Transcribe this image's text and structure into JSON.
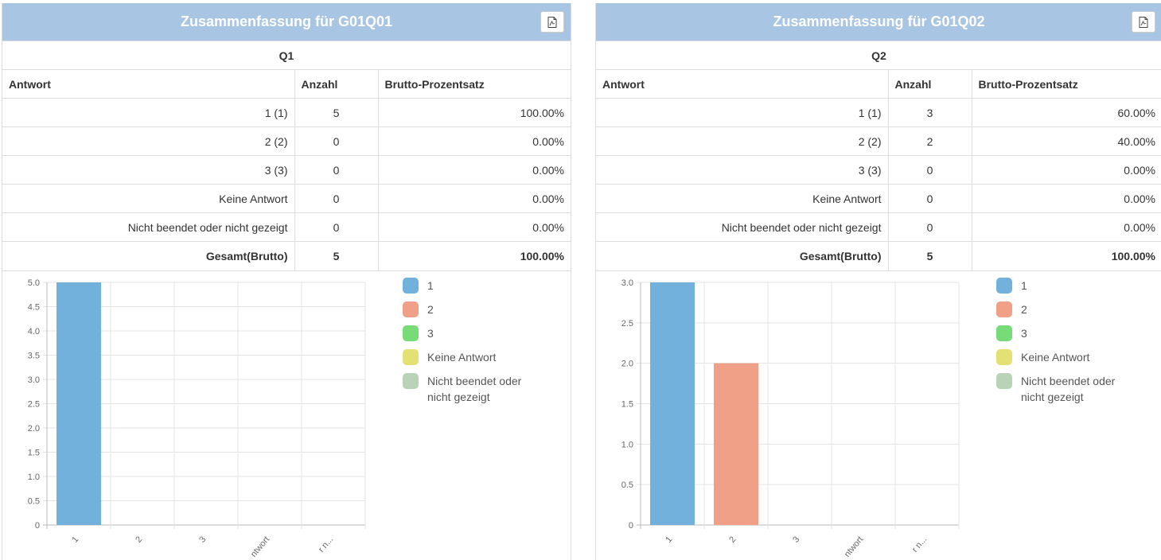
{
  "panels": [
    {
      "title": "Zusammenfassung für G01Q01",
      "question": "Q1",
      "headers": {
        "answer": "Antwort",
        "count": "Anzahl",
        "percent": "Brutto-Prozentsatz"
      },
      "rows": [
        {
          "answer": "1 (1)",
          "count": "5",
          "percent": "100.00%"
        },
        {
          "answer": "2 (2)",
          "count": "0",
          "percent": "0.00%"
        },
        {
          "answer": "3 (3)",
          "count": "0",
          "percent": "0.00%"
        },
        {
          "answer": "Keine Antwort",
          "count": "0",
          "percent": "0.00%"
        },
        {
          "answer": "Nicht beendet oder nicht gezeigt",
          "count": "0",
          "percent": "0.00%"
        }
      ],
      "total": {
        "answer": "Gesamt(Brutto)",
        "count": "5",
        "percent": "100.00%"
      },
      "legend": [
        "1",
        "2",
        "3",
        "Keine Antwort",
        "Nicht beendet oder nicht gezeigt"
      ]
    },
    {
      "title": "Zusammenfassung für G01Q02",
      "question": "Q2",
      "headers": {
        "answer": "Antwort",
        "count": "Anzahl",
        "percent": "Brutto-Prozentsatz"
      },
      "rows": [
        {
          "answer": "1 (1)",
          "count": "3",
          "percent": "60.00%"
        },
        {
          "answer": "2 (2)",
          "count": "2",
          "percent": "40.00%"
        },
        {
          "answer": "3 (3)",
          "count": "0",
          "percent": "0.00%"
        },
        {
          "answer": "Keine Antwort",
          "count": "0",
          "percent": "0.00%"
        },
        {
          "answer": "Nicht beendet oder nicht gezeigt",
          "count": "0",
          "percent": "0.00%"
        }
      ],
      "total": {
        "answer": "Gesamt(Brutto)",
        "count": "5",
        "percent": "100.00%"
      },
      "legend": [
        "1",
        "2",
        "3",
        "Keine Antwort",
        "Nicht beendet oder nicht gezeigt"
      ]
    }
  ],
  "colors": {
    "series": [
      "#72b1dc",
      "#f0a086",
      "#77db77",
      "#e3e173",
      "#b9d3b9"
    ],
    "header_bg": "#a8c5e4"
  },
  "chart_data": [
    {
      "type": "bar",
      "categories": [
        "1",
        "2",
        "3",
        "Keine Antwort",
        "Nicht beendet oder nicht gezeigt"
      ],
      "category_ticks": [
        "1",
        "2",
        "3",
        "ntwort",
        "r n..."
      ],
      "values": [
        5,
        0,
        0,
        0,
        0
      ],
      "ylim": [
        0,
        5
      ],
      "yticks": [
        "0",
        "0.5",
        "1.0",
        "1.5",
        "2.0",
        "2.5",
        "3.0",
        "3.5",
        "4.0",
        "4.5",
        "5.0"
      ],
      "legend": "right"
    },
    {
      "type": "bar",
      "categories": [
        "1",
        "2",
        "3",
        "Keine Antwort",
        "Nicht beendet oder nicht gezeigt"
      ],
      "category_ticks": [
        "1",
        "2",
        "3",
        "ntwort",
        "r n..."
      ],
      "values": [
        3,
        2,
        0,
        0,
        0
      ],
      "ylim": [
        0,
        3
      ],
      "yticks": [
        "0",
        "0.5",
        "1.0",
        "1.5",
        "2.0",
        "2.5",
        "3.0"
      ],
      "legend": "right"
    }
  ]
}
